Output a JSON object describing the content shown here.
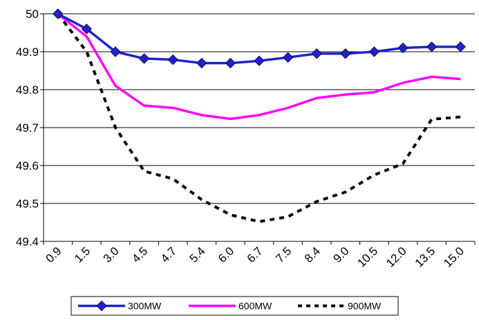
{
  "chart_data": {
    "type": "line",
    "categories": [
      "0.9",
      "1.5",
      "3.0",
      "4.5",
      "4.7",
      "5.4",
      "6.0",
      "6.7",
      "7.5",
      "8.4",
      "9.0",
      "10.5",
      "12.0",
      "13.5",
      "15.0"
    ],
    "ylim": [
      49.4,
      50
    ],
    "yticks": [
      "49.4",
      "49.5",
      "49.6",
      "49.7",
      "49.8",
      "49.9",
      "50"
    ],
    "grid": "horizontal",
    "legend_position": "bottom",
    "series": [
      {
        "name": "300MW",
        "color": "#2020d0",
        "style": "solid-diamond",
        "values": [
          50.0,
          49.96,
          49.9,
          49.882,
          49.879,
          49.87,
          49.87,
          49.876,
          49.885,
          49.895,
          49.895,
          49.9,
          49.91,
          49.913,
          49.913
        ]
      },
      {
        "name": "600MW",
        "color": "#ff00ff",
        "style": "solid",
        "values": [
          50.0,
          49.94,
          49.81,
          49.758,
          49.752,
          49.733,
          49.723,
          49.733,
          49.752,
          49.778,
          49.787,
          49.793,
          49.818,
          49.834,
          49.828
        ]
      },
      {
        "name": "900MW",
        "color": "#000000",
        "style": "dashed",
        "values": [
          50.0,
          49.9,
          49.7,
          49.585,
          49.565,
          49.51,
          49.47,
          49.452,
          49.465,
          49.505,
          49.53,
          49.575,
          49.605,
          49.722,
          49.728
        ]
      }
    ]
  }
}
